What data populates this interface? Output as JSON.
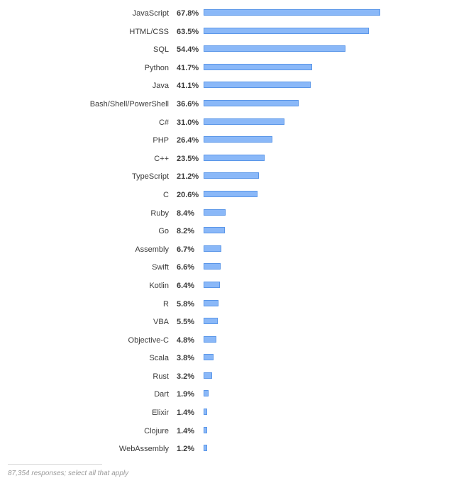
{
  "chart_data": {
    "type": "bar",
    "orientation": "horizontal",
    "title": "",
    "xlabel": "",
    "ylabel": "",
    "unit": "%",
    "categories": [
      "JavaScript",
      "HTML/CSS",
      "SQL",
      "Python",
      "Java",
      "Bash/Shell/PowerShell",
      "C#",
      "PHP",
      "C++",
      "TypeScript",
      "C",
      "Ruby",
      "Go",
      "Assembly",
      "Swift",
      "Kotlin",
      "R",
      "VBA",
      "Objective-C",
      "Scala",
      "Rust",
      "Dart",
      "Elixir",
      "Clojure",
      "WebAssembly"
    ],
    "values": [
      67.8,
      63.5,
      54.4,
      41.7,
      41.1,
      36.6,
      31.0,
      26.4,
      23.5,
      21.2,
      20.6,
      8.4,
      8.2,
      6.7,
      6.6,
      6.4,
      5.8,
      5.5,
      4.8,
      3.8,
      3.2,
      1.9,
      1.4,
      1.4,
      1.2
    ],
    "value_labels": [
      "67.8%",
      "63.5%",
      "54.4%",
      "41.7%",
      "41.1%",
      "36.6%",
      "31.0%",
      "26.4%",
      "23.5%",
      "21.2%",
      "20.6%",
      "8.4%",
      "8.2%",
      "6.7%",
      "6.6%",
      "6.4%",
      "5.8%",
      "5.5%",
      "4.8%",
      "3.8%",
      "3.2%",
      "1.9%",
      "1.4%",
      "1.4%",
      "1.2%"
    ],
    "xlim": [
      0,
      100
    ],
    "grid": false,
    "legend": null,
    "bar_color": "#8ab8f8",
    "bar_border_color": "#5a96e8"
  },
  "footer": {
    "note": "87,354 responses; select all that apply"
  }
}
